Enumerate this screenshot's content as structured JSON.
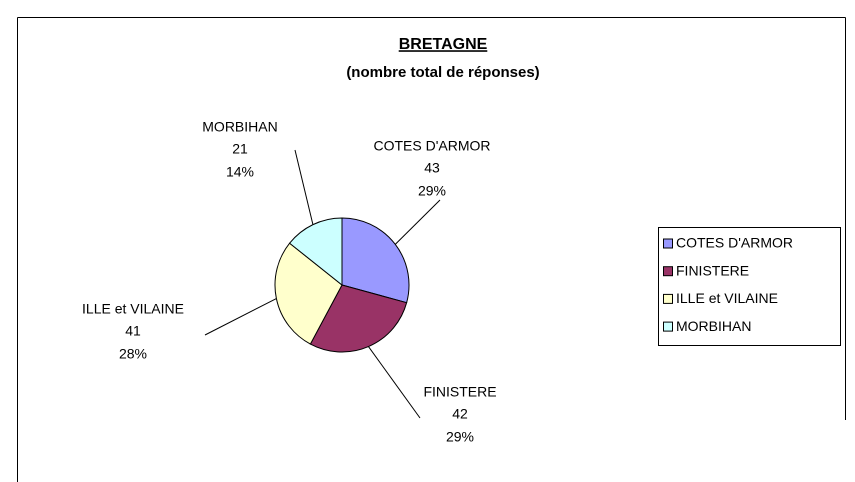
{
  "chart_data": {
    "type": "pie",
    "title": "BRETAGNE",
    "subtitle": "(nombre total de réponses)",
    "categories": [
      "COTES D'ARMOR",
      "FINISTERE",
      "ILLE et VILAINE",
      "MORBIHAN"
    ],
    "values": [
      43,
      42,
      41,
      21
    ],
    "percent_labels": [
      "29%",
      "29%",
      "28%",
      "14%"
    ],
    "colors": [
      "#9999ff",
      "#993366",
      "#ffffcc",
      "#ccffff"
    ],
    "legend": "right"
  }
}
